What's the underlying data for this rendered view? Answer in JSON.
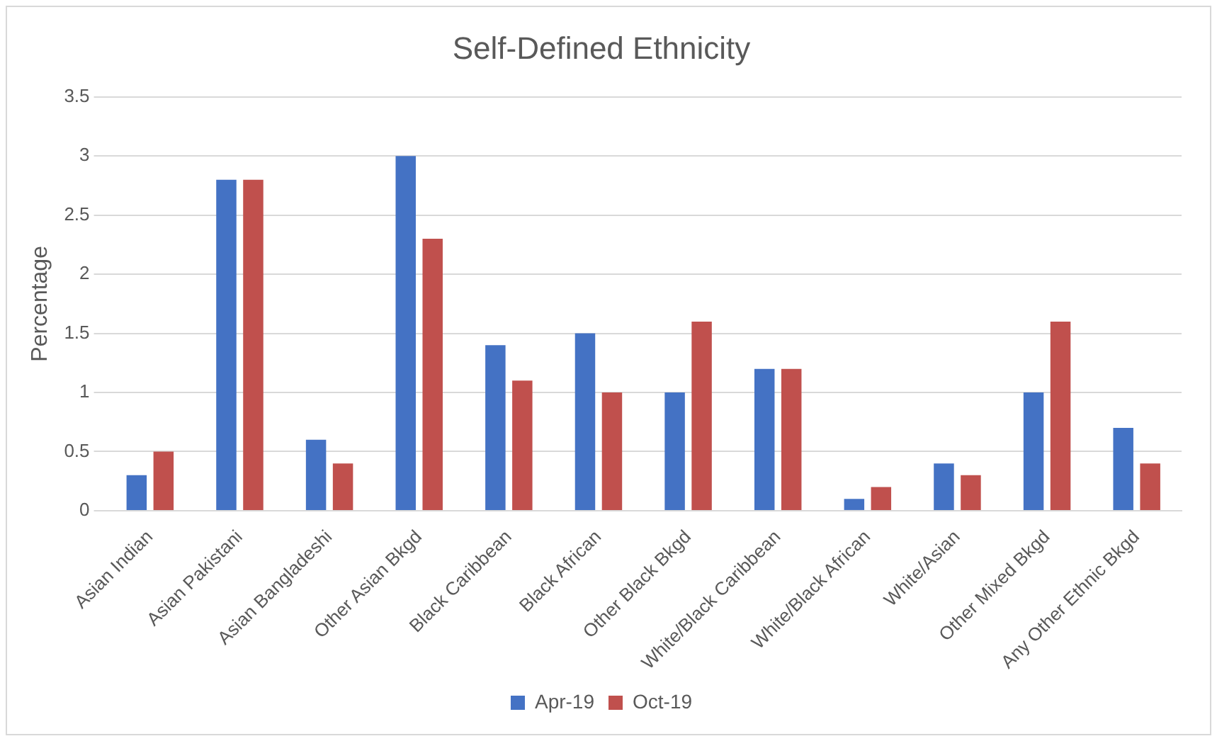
{
  "chart_data": {
    "type": "bar",
    "title": "Self-Defined Ethnicity",
    "ylabel": "Percentage",
    "categories": [
      "Asian Indian",
      "Asian Pakistani",
      "Asian Bangladeshi",
      "Other Asian Bkgd",
      "Black Caribbean",
      "Black African",
      "Other Black Bkgd",
      "White/Black Caribbean",
      "White/Black African",
      "White/Asian",
      "Other Mixed Bkgd",
      "Any Other Ethnic Bkgd"
    ],
    "series": [
      {
        "name": "Apr-19",
        "color": "#4472c4",
        "values": [
          0.3,
          2.8,
          0.6,
          3.0,
          1.4,
          1.5,
          1.0,
          1.2,
          0.1,
          0.4,
          1.0,
          0.7
        ]
      },
      {
        "name": "Oct-19",
        "color": "#c0504d",
        "values": [
          0.5,
          2.8,
          0.4,
          2.3,
          1.1,
          1.0,
          1.6,
          1.2,
          0.2,
          0.3,
          1.6,
          0.4
        ]
      }
    ],
    "ylim": [
      0,
      3.5
    ],
    "yticks": [
      0,
      0.5,
      1,
      1.5,
      2,
      2.5,
      3,
      3.5
    ],
    "grid": "y",
    "legend": "bottom"
  }
}
